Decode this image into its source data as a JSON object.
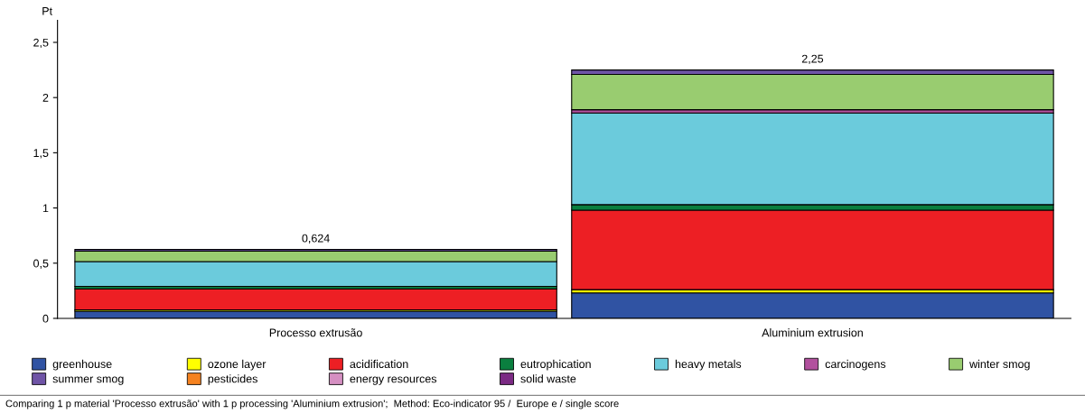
{
  "chart_data": {
    "type": "bar",
    "stacked": true,
    "ylabel": "Pt",
    "categories": [
      "Processo extrusão",
      "Aluminium extrusion"
    ],
    "series": [
      {
        "name": "greenhouse",
        "color": "#3053a3",
        "values": [
          0.065,
          0.23
        ]
      },
      {
        "name": "ozone layer",
        "color": "#ffff00",
        "values": [
          0.012,
          0.03
        ]
      },
      {
        "name": "acidification",
        "color": "#ed1f24",
        "values": [
          0.19,
          0.72
        ]
      },
      {
        "name": "eutrophication",
        "color": "#0a7f3f",
        "values": [
          0.023,
          0.05
        ]
      },
      {
        "name": "heavy metals",
        "color": "#6bcbdc",
        "values": [
          0.225,
          0.83
        ]
      },
      {
        "name": "carcinogens",
        "color": "#b2509e",
        "values": [
          null,
          0.03
        ]
      },
      {
        "name": "winter smog",
        "color": "#99cc70",
        "values": [
          0.093,
          0.32
        ]
      },
      {
        "name": "summer smog",
        "color": "#6f54a6",
        "values": [
          0.016,
          0.04
        ]
      },
      {
        "name": "pesticides",
        "color": "#f58220",
        "values": [
          null,
          null
        ]
      },
      {
        "name": "energy resources",
        "color": "#d58fc2",
        "values": [
          null,
          null
        ]
      },
      {
        "name": "solid waste",
        "color": "#7b2a84",
        "values": [
          null,
          null
        ]
      }
    ],
    "totals": [
      "0,624",
      "2,25"
    ],
    "ylim": [
      0,
      2.7
    ],
    "yticks": [
      0,
      {
        "value": 0.5,
        "label": "0,5"
      },
      1,
      {
        "value": 1.5,
        "label": "1,5"
      },
      2,
      {
        "value": 2.5,
        "label": "2,5"
      }
    ],
    "grid": false,
    "legend": "bottom",
    "annotations": [
      "Comparing 1 p material 'Processo extrusão' with 1 p processing 'Aluminium extrusion';  Method: Eco-indicator 95 /  Europe e / single score"
    ]
  }
}
